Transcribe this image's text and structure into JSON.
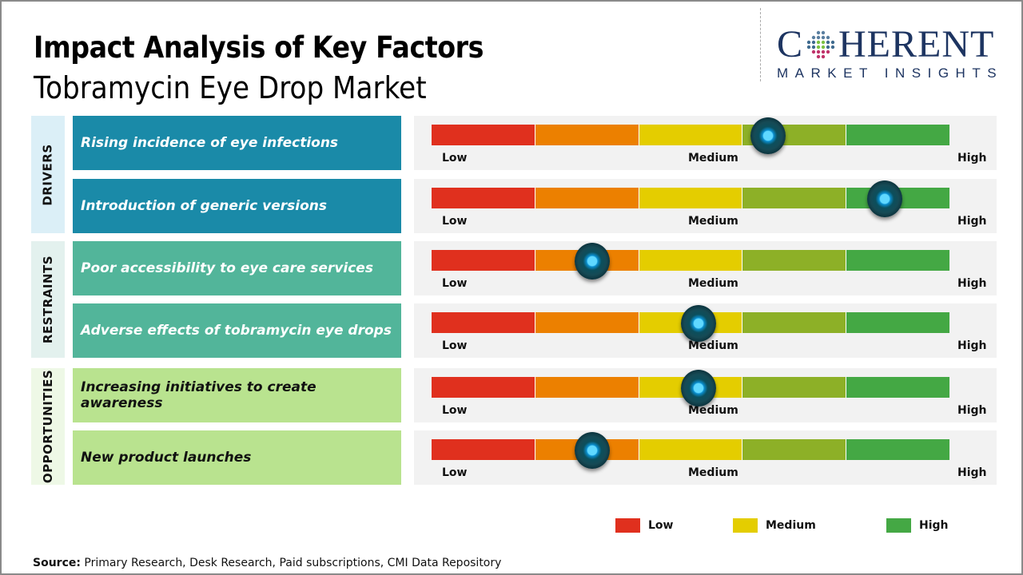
{
  "header": {
    "title": "Impact Analysis of Key Factors",
    "subtitle": "Tobramycin Eye Drop Market"
  },
  "logo": {
    "brand_first": "C",
    "brand_rest": "HERENT",
    "tagline": "MARKET INSIGHTS",
    "icon": "globe-dots-icon"
  },
  "colors": {
    "scale": [
      "#e0301e",
      "#ec8000",
      "#e4cd00",
      "#8db027",
      "#44a844"
    ],
    "drivers_bg": "#1a8aa8",
    "drivers_cat_bg": "#dbeff7",
    "restraints_bg": "#52b59a",
    "restraints_cat_bg": "#e3f1ee",
    "opportunities_bg": "#b9e38f",
    "opportunities_cat_bg": "#eef8e6"
  },
  "chart_data": {
    "type": "table",
    "title": "Impact Analysis of Key Factors",
    "subtitle": "Tobramycin Eye Drop Market",
    "scale_labels": [
      "Low",
      "Medium",
      "High"
    ],
    "scale_segments": 5,
    "value_unit": "fraction of scale from Low (0) to High (1)",
    "categories": [
      {
        "name": "DRIVERS",
        "factors": [
          {
            "label": "Rising incidence of eye infections",
            "impact": 0.65,
            "level": "Medium-High"
          },
          {
            "label": "Introduction of generic versions",
            "impact": 0.875,
            "level": "High"
          }
        ]
      },
      {
        "name": "RESTRAINTS",
        "factors": [
          {
            "label": "Poor accessibility to eye care services",
            "impact": 0.31,
            "level": "Low-Medium"
          },
          {
            "label": "Adverse effects of tobramycin eye drops",
            "impact": 0.515,
            "level": "Medium"
          }
        ]
      },
      {
        "name": "OPPORTUNITIES",
        "factors": [
          {
            "label": "Increasing initiatives to create awareness",
            "impact": 0.515,
            "level": "Medium"
          },
          {
            "label": "New product launches",
            "impact": 0.31,
            "level": "Low-Medium"
          }
        ]
      }
    ],
    "legend": [
      {
        "label": "Low",
        "color": "#e0301e"
      },
      {
        "label": "Medium",
        "color": "#e4cd00"
      },
      {
        "label": "High",
        "color": "#44a844"
      }
    ],
    "legend_position": "bottom-right"
  },
  "source": {
    "label": "Source:",
    "text": " Primary Research, Desk Research, Paid subscriptions, CMI Data Repository"
  }
}
